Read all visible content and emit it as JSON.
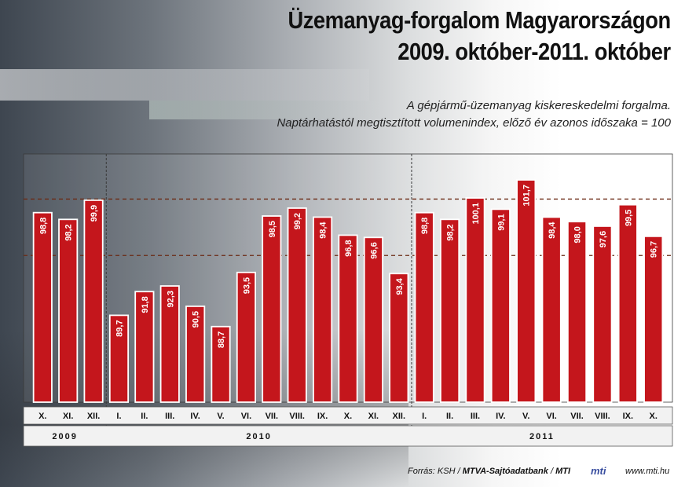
{
  "title_line1": "Üzemanyag-forgalom Magyarországon",
  "title_line2": "2009. október-2011. október",
  "subtitle_line1": "A gépjármű-üzemanyag kiskereskedelmi forgalma.",
  "subtitle_line2": "Naptárhatástól megtisztított volumenindex, előző év azonos időszaka = 100",
  "source_label": "Forrás: KSH / ",
  "source_bold": "MTVA-Sajtóadatbank",
  "source_sep": " / ",
  "source_mti": "MTI",
  "logo_text": "mti",
  "url": "www.mti.hu",
  "colors": {
    "bar": "#c4161c",
    "bar_border": "#ffffff",
    "guide": "#6b2a14"
  },
  "chart_data": {
    "type": "bar",
    "categories": [
      "X.",
      "XI.",
      "XII.",
      "I.",
      "II.",
      "III.",
      "IV.",
      "V.",
      "VI.",
      "VII.",
      "VIII.",
      "IX.",
      "X.",
      "XI.",
      "XII.",
      "I.",
      "II.",
      "III.",
      "IV.",
      "V.",
      "VI.",
      "VII.",
      "VIII.",
      "IX.",
      "X."
    ],
    "values": [
      98.8,
      98.2,
      99.9,
      89.7,
      91.8,
      92.3,
      90.5,
      88.7,
      93.5,
      98.5,
      99.2,
      98.4,
      96.8,
      96.6,
      93.4,
      98.8,
      98.2,
      100.1,
      99.1,
      101.7,
      98.4,
      98.0,
      97.6,
      99.5,
      96.7
    ],
    "value_labels": [
      "98,8",
      "98,2",
      "99,9",
      "89,7",
      "91,8",
      "92,3",
      "90,5",
      "88,7",
      "93,5",
      "98,5",
      "99,2",
      "98,4",
      "96,8",
      "96,6",
      "93,4",
      "98,8",
      "98,2",
      "100,1",
      "99,1",
      "101,7",
      "98,4",
      "98,0",
      "97,6",
      "99,5",
      "96,7"
    ],
    "years": [
      {
        "label": "2009",
        "count": 3
      },
      {
        "label": "2010",
        "count": 12
      },
      {
        "label": "2011",
        "count": 10
      }
    ],
    "guide_lines": [
      100,
      95
    ],
    "ylim": [
      82,
      104
    ],
    "grid": false,
    "legend": "none"
  }
}
